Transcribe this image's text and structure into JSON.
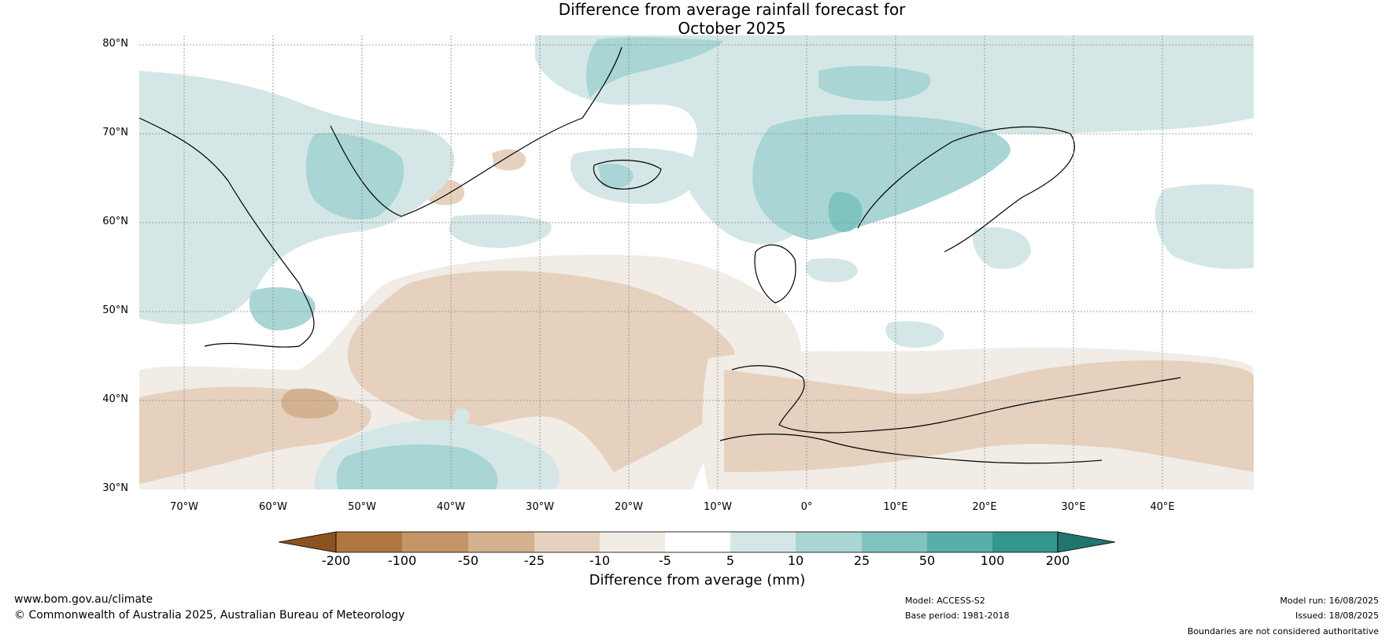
{
  "title": {
    "line1": "Difference from average rainfall forecast for",
    "line2": "October 2025"
  },
  "map": {
    "lat_labels": [
      "80°N",
      "70°N",
      "60°N",
      "50°N",
      "40°N",
      "30°N"
    ],
    "lon_labels": [
      "70°W",
      "60°W",
      "50°W",
      "40°W",
      "30°W",
      "20°W",
      "10°W",
      "0°",
      "10°E",
      "20°E",
      "30°E",
      "40°E"
    ],
    "extent": {
      "lon": [
        -75,
        50
      ],
      "lat": [
        30,
        81
      ]
    }
  },
  "colorbar": {
    "title": "Difference from average (mm)",
    "ticks": [
      "-200",
      "-100",
      "-50",
      "-25",
      "-10",
      "-5",
      "5",
      "10",
      "25",
      "50",
      "100",
      "200"
    ],
    "colors": [
      "#8a5320",
      "#b07840",
      "#c39667",
      "#d4b290",
      "#e5d1be",
      "#f1ece6",
      "#ffffff",
      "#d4e7e6",
      "#a9d5d4",
      "#80c4c1",
      "#58aeab",
      "#33968f",
      "#22746f"
    ]
  },
  "footer": {
    "website": "www.bom.gov.au/climate",
    "copyright": "© Commonwealth of Australia 2025, Australian Bureau of Meteorology",
    "model": "Model: ACCESS-S2",
    "base_period": "Base period: 1981-2018",
    "model_run": "Model run: 16/08/2025",
    "issued": "Issued: 18/08/2025",
    "disclaimer": "Boundaries are not considered authoritative"
  }
}
